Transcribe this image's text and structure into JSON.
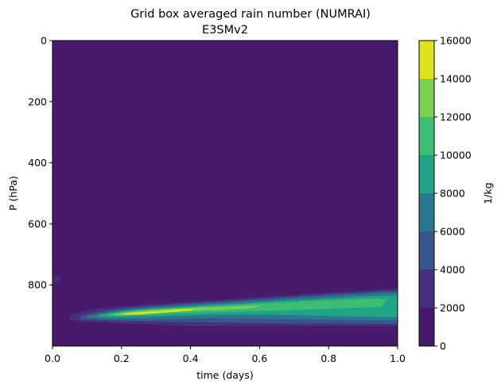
{
  "chart_data": {
    "type": "heatmap",
    "subtype": "filled-contour",
    "title": "Grid box averaged rain number (NUMRAI)",
    "subtitle": "E3SMv2",
    "xlabel": "time (days)",
    "ylabel": "P (hPa)",
    "xlim": [
      0.0,
      1.0
    ],
    "ylim": [
      1000,
      0
    ],
    "xticks": [
      0.0,
      0.2,
      0.4,
      0.6,
      0.8,
      1.0
    ],
    "xtick_labels": [
      "0.0",
      "0.2",
      "0.4",
      "0.6",
      "0.8",
      "1.0"
    ],
    "yticks": [
      0,
      200,
      400,
      600,
      800
    ],
    "ytick_labels": [
      "0",
      "200",
      "400",
      "600",
      "800"
    ],
    "colorbar": {
      "label": "1/kg",
      "levels": [
        0,
        2000,
        4000,
        6000,
        8000,
        10000,
        12000,
        14000,
        16000
      ],
      "tick_labels": [
        "0",
        "2000",
        "4000",
        "6000",
        "8000",
        "10000",
        "12000",
        "14000",
        "16000"
      ],
      "colors": [
        "#481A6C",
        "#472F7D",
        "#39568C",
        "#2A788E",
        "#20A486",
        "#3DBC74",
        "#7AD151",
        "#DDE318"
      ]
    },
    "background_value_range": [
      0,
      2000
    ],
    "feature": {
      "description": "Rain number maximum band descending slightly in pressure height over time",
      "peak_value_range": [
        14000,
        16000
      ],
      "peak_location": {
        "time": [
          0.2,
          0.4
        ],
        "pressure": [
          870,
          905
        ]
      },
      "small_patch": {
        "time": [
          0.0,
          0.02
        ],
        "pressure": [
          770,
          790
        ],
        "value_range": [
          2000,
          4000
        ]
      },
      "bands": [
        {
          "level_index": 1,
          "points": [
            [
              0.05,
              900
            ],
            [
              0.08,
              890
            ],
            [
              0.12,
              880
            ],
            [
              0.2,
              870
            ],
            [
              0.3,
              862
            ],
            [
              0.4,
              855
            ],
            [
              0.5,
              848
            ],
            [
              0.6,
              840
            ],
            [
              0.7,
              832
            ],
            [
              0.8,
              825
            ],
            [
              0.9,
              818
            ],
            [
              1.0,
              812
            ],
            [
              1.0,
              935
            ],
            [
              0.9,
              935
            ],
            [
              0.8,
              934
            ],
            [
              0.7,
              935
            ],
            [
              0.6,
              935
            ],
            [
              0.5,
              935
            ],
            [
              0.4,
              934
            ],
            [
              0.3,
              930
            ],
            [
              0.2,
              926
            ],
            [
              0.12,
              922
            ],
            [
              0.08,
              920
            ],
            [
              0.05,
              915
            ]
          ]
        },
        {
          "level_index": 2,
          "points": [
            [
              0.08,
              902
            ],
            [
              0.12,
              890
            ],
            [
              0.2,
              877
            ],
            [
              0.3,
              868
            ],
            [
              0.4,
              860
            ],
            [
              0.5,
              853
            ],
            [
              0.6,
              846
            ],
            [
              0.7,
              838
            ],
            [
              0.8,
              831
            ],
            [
              0.9,
              824
            ],
            [
              1.0,
              818
            ],
            [
              1.0,
              927
            ],
            [
              0.9,
              927
            ],
            [
              0.8,
              926
            ],
            [
              0.7,
              926
            ],
            [
              0.6,
              925
            ],
            [
              0.5,
              923
            ],
            [
              0.4,
              922
            ],
            [
              0.3,
              920
            ],
            [
              0.2,
              918
            ],
            [
              0.12,
              915
            ],
            [
              0.08,
              912
            ]
          ]
        },
        {
          "level_index": 3,
          "points": [
            [
              0.1,
              902
            ],
            [
              0.15,
              890
            ],
            [
              0.22,
              880
            ],
            [
              0.3,
              872
            ],
            [
              0.4,
              865
            ],
            [
              0.5,
              858
            ],
            [
              0.6,
              851
            ],
            [
              0.7,
              844
            ],
            [
              0.8,
              837
            ],
            [
              0.9,
              830
            ],
            [
              1.0,
              825
            ],
            [
              1.0,
              917
            ],
            [
              0.9,
              916
            ],
            [
              0.8,
              914
            ],
            [
              0.7,
              912
            ],
            [
              0.6,
              910
            ],
            [
              0.5,
              909
            ],
            [
              0.4,
              910
            ],
            [
              0.3,
              912
            ],
            [
              0.2,
              913
            ],
            [
              0.15,
              912
            ],
            [
              0.1,
              908
            ]
          ]
        },
        {
          "level_index": 4,
          "points": [
            [
              0.13,
              900
            ],
            [
              0.18,
              888
            ],
            [
              0.25,
              880
            ],
            [
              0.35,
              873
            ],
            [
              0.45,
              866
            ],
            [
              0.55,
              860
            ],
            [
              0.65,
              853
            ],
            [
              0.75,
              847
            ],
            [
              0.85,
              841
            ],
            [
              0.95,
              836
            ],
            [
              1.0,
              834
            ],
            [
              1.0,
              905
            ],
            [
              0.95,
              905
            ],
            [
              0.85,
              903
            ],
            [
              0.75,
              900
            ],
            [
              0.65,
              898
            ],
            [
              0.55,
              897
            ],
            [
              0.45,
              898
            ],
            [
              0.35,
              901
            ],
            [
              0.25,
              905
            ],
            [
              0.18,
              906
            ],
            [
              0.13,
              905
            ]
          ]
        },
        {
          "level_index": 5,
          "points": [
            [
              0.16,
              897
            ],
            [
              0.2,
              888
            ],
            [
              0.28,
              880
            ],
            [
              0.38,
              874
            ],
            [
              0.48,
              868
            ],
            [
              0.58,
              862
            ],
            [
              0.68,
              857
            ],
            [
              0.78,
              851
            ],
            [
              0.88,
              847
            ],
            [
              0.95,
              844
            ],
            [
              0.97,
              848
            ],
            [
              0.95,
              872
            ],
            [
              0.85,
              876
            ],
            [
              0.75,
              880
            ],
            [
              0.65,
              884
            ],
            [
              0.55,
              887
            ],
            [
              0.45,
              890
            ],
            [
              0.35,
              894
            ],
            [
              0.25,
              899
            ],
            [
              0.2,
              901
            ],
            [
              0.16,
              900
            ]
          ]
        },
        {
          "level_index": 6,
          "points": [
            [
              0.18,
              896
            ],
            [
              0.22,
              889
            ],
            [
              0.28,
              883
            ],
            [
              0.35,
              878
            ],
            [
              0.45,
              873
            ],
            [
              0.55,
              869
            ],
            [
              0.6,
              868
            ],
            [
              0.58,
              876
            ],
            [
              0.5,
              881
            ],
            [
              0.4,
              885
            ],
            [
              0.3,
              892
            ],
            [
              0.22,
              898
            ],
            [
              0.18,
              899
            ]
          ]
        },
        {
          "level_index": 7,
          "points": [
            [
              0.2,
              895
            ],
            [
              0.24,
              890
            ],
            [
              0.3,
              886
            ],
            [
              0.36,
              880
            ],
            [
              0.41,
              878
            ],
            [
              0.4,
              884
            ],
            [
              0.34,
              889
            ],
            [
              0.27,
              895
            ],
            [
              0.22,
              898
            ]
          ]
        }
      ]
    }
  }
}
